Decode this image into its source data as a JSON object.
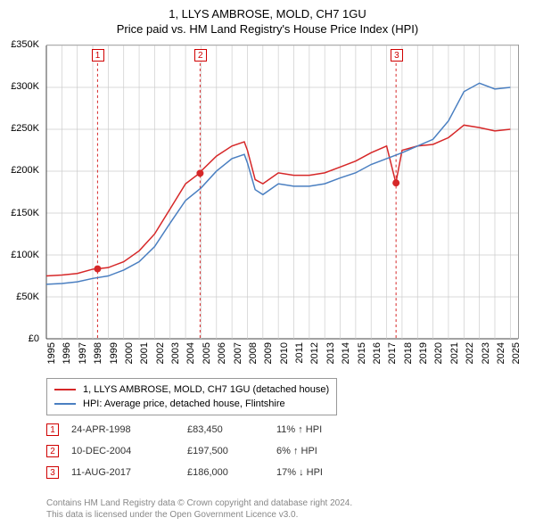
{
  "title_line1": "1, LLYS AMBROSE, MOLD, CH7 1GU",
  "title_line2": "Price paid vs. HM Land Registry's House Price Index (HPI)",
  "chart": {
    "type": "line",
    "x_range": [
      1995,
      2025.5
    ],
    "y_range": [
      0,
      350000
    ],
    "y_ticks": [
      0,
      50000,
      100000,
      150000,
      200000,
      250000,
      300000,
      350000
    ],
    "y_tick_labels": [
      "£0",
      "£50K",
      "£100K",
      "£150K",
      "£200K",
      "£250K",
      "£300K",
      "£350K"
    ],
    "x_ticks": [
      1995,
      1996,
      1997,
      1998,
      1999,
      2000,
      2001,
      2002,
      2003,
      2004,
      2005,
      2006,
      2007,
      2008,
      2009,
      2010,
      2011,
      2012,
      2013,
      2014,
      2015,
      2016,
      2017,
      2018,
      2019,
      2020,
      2021,
      2022,
      2023,
      2024,
      2025
    ],
    "grid_color": "#cccccc",
    "axis_color": "#444444",
    "background": "#ffffff",
    "series": [
      {
        "name": "1, LLYS AMBROSE, MOLD, CH7 1GU (detached house)",
        "color": "#d62728",
        "width": 1.5,
        "data": [
          [
            1995,
            75000
          ],
          [
            1996,
            76000
          ],
          [
            1997,
            78000
          ],
          [
            1998,
            83000
          ],
          [
            1998.3,
            83450
          ],
          [
            1999,
            85000
          ],
          [
            2000,
            92000
          ],
          [
            2001,
            105000
          ],
          [
            2002,
            125000
          ],
          [
            2003,
            155000
          ],
          [
            2004,
            185000
          ],
          [
            2004.9,
            197500
          ],
          [
            2005,
            200000
          ],
          [
            2006,
            218000
          ],
          [
            2007,
            230000
          ],
          [
            2007.8,
            235000
          ],
          [
            2008,
            225000
          ],
          [
            2008.5,
            190000
          ],
          [
            2009,
            185000
          ],
          [
            2010,
            198000
          ],
          [
            2011,
            195000
          ],
          [
            2012,
            195000
          ],
          [
            2013,
            198000
          ],
          [
            2014,
            205000
          ],
          [
            2015,
            212000
          ],
          [
            2016,
            222000
          ],
          [
            2017,
            230000
          ],
          [
            2017.6,
            186000
          ],
          [
            2018,
            225000
          ],
          [
            2019,
            230000
          ],
          [
            2020,
            232000
          ],
          [
            2021,
            240000
          ],
          [
            2022,
            255000
          ],
          [
            2023,
            252000
          ],
          [
            2024,
            248000
          ],
          [
            2025,
            250000
          ]
        ]
      },
      {
        "name": "HPI: Average price, detached house, Flintshire",
        "color": "#4a7fc1",
        "width": 1.5,
        "data": [
          [
            1995,
            65000
          ],
          [
            1996,
            66000
          ],
          [
            1997,
            68000
          ],
          [
            1998,
            72000
          ],
          [
            1999,
            75000
          ],
          [
            2000,
            82000
          ],
          [
            2001,
            92000
          ],
          [
            2002,
            110000
          ],
          [
            2003,
            138000
          ],
          [
            2004,
            165000
          ],
          [
            2005,
            180000
          ],
          [
            2006,
            200000
          ],
          [
            2007,
            215000
          ],
          [
            2007.8,
            220000
          ],
          [
            2008,
            210000
          ],
          [
            2008.5,
            178000
          ],
          [
            2009,
            172000
          ],
          [
            2010,
            185000
          ],
          [
            2011,
            182000
          ],
          [
            2012,
            182000
          ],
          [
            2013,
            185000
          ],
          [
            2014,
            192000
          ],
          [
            2015,
            198000
          ],
          [
            2016,
            208000
          ],
          [
            2017,
            215000
          ],
          [
            2018,
            222000
          ],
          [
            2019,
            230000
          ],
          [
            2020,
            238000
          ],
          [
            2021,
            260000
          ],
          [
            2022,
            295000
          ],
          [
            2023,
            305000
          ],
          [
            2024,
            298000
          ],
          [
            2025,
            300000
          ]
        ]
      }
    ],
    "sale_points": [
      {
        "x": 1998.31,
        "y": 83450,
        "color": "#d62728"
      },
      {
        "x": 2004.94,
        "y": 197500,
        "color": "#d62728"
      },
      {
        "x": 2017.61,
        "y": 186000,
        "color": "#d62728"
      }
    ],
    "marker_flags": [
      {
        "label": "1",
        "x": 1998.31
      },
      {
        "label": "2",
        "x": 2004.94
      },
      {
        "label": "3",
        "x": 2017.61
      }
    ]
  },
  "legend": {
    "items": [
      {
        "color": "#d62728",
        "label": "1, LLYS AMBROSE, MOLD, CH7 1GU (detached house)"
      },
      {
        "color": "#4a7fc1",
        "label": "HPI: Average price, detached house, Flintshire"
      }
    ]
  },
  "sales": [
    {
      "n": "1",
      "date": "24-APR-1998",
      "price": "£83,450",
      "delta": "11% ↑ HPI"
    },
    {
      "n": "2",
      "date": "10-DEC-2004",
      "price": "£197,500",
      "delta": "6% ↑ HPI"
    },
    {
      "n": "3",
      "date": "11-AUG-2017",
      "price": "£186,000",
      "delta": "17% ↓ HPI"
    }
  ],
  "footer_line1": "Contains HM Land Registry data © Crown copyright and database right 2024.",
  "footer_line2": "This data is licensed under the Open Government Licence v3.0."
}
